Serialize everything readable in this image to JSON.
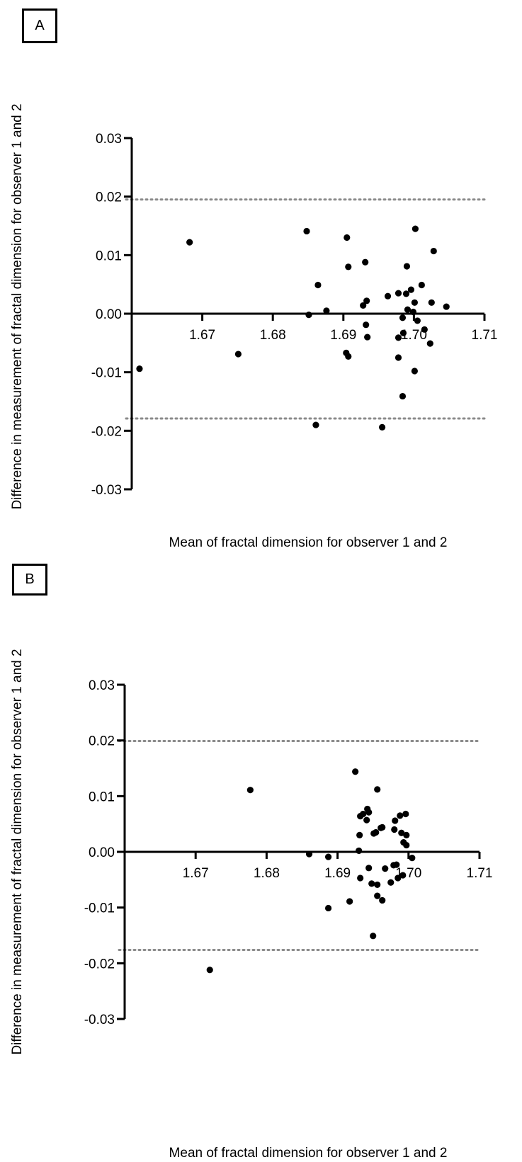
{
  "chart_data": [
    {
      "type": "scatter",
      "panel_label": "A",
      "xlabel": "Mean of fractal dimension for observer 1 and 2",
      "ylabel": "Difference in measurement of fractal dimension for observer 1 and 2",
      "xlim": [
        1.66,
        1.71
      ],
      "ylim": [
        -0.03,
        0.03
      ],
      "x_ticks": [
        "1.67",
        "1.68",
        "1.69",
        "1.70",
        "1.71"
      ],
      "y_ticks": [
        "0.03",
        "0.02",
        "0.01",
        "0.00",
        "-0.01",
        "-0.02",
        "-0.03"
      ],
      "limits_of_agreement": [
        0.0195,
        -0.0179
      ],
      "grid": false,
      "points": [
        [
          1.6682,
          0.0122
        ],
        [
          1.6611,
          -0.0094
        ],
        [
          1.6751,
          -0.0069
        ],
        [
          1.6848,
          0.0141
        ],
        [
          1.6851,
          -0.0002
        ],
        [
          1.6861,
          -0.019
        ],
        [
          1.6864,
          0.0049
        ],
        [
          1.6876,
          0.0005
        ],
        [
          1.6905,
          0.013
        ],
        [
          1.6907,
          0.008
        ],
        [
          1.6904,
          -0.0067
        ],
        [
          1.6907,
          -0.0073
        ],
        [
          1.6931,
          0.0088
        ],
        [
          1.6928,
          0.0014
        ],
        [
          1.6933,
          0.0022
        ],
        [
          1.6932,
          -0.0019
        ],
        [
          1.6934,
          -0.004
        ],
        [
          1.6955,
          -0.0194
        ],
        [
          1.6963,
          0.003
        ],
        [
          1.6978,
          0.0035
        ],
        [
          1.6978,
          -0.0041
        ],
        [
          1.6978,
          -0.0075
        ],
        [
          1.6985,
          -0.0033
        ],
        [
          1.6984,
          -0.0141
        ],
        [
          1.6984,
          -0.0007
        ],
        [
          1.6989,
          0.0034
        ],
        [
          1.699,
          0.0081
        ],
        [
          1.6991,
          0.0007
        ],
        [
          1.6996,
          0.0041
        ],
        [
          1.6999,
          0.0003
        ],
        [
          1.7001,
          0.0019
        ],
        [
          1.7001,
          -0.0098
        ],
        [
          1.7002,
          0.0145
        ],
        [
          1.7005,
          -0.0012
        ],
        [
          1.7011,
          0.0049
        ],
        [
          1.7015,
          -0.0027
        ],
        [
          1.7023,
          -0.0051
        ],
        [
          1.7025,
          0.0019
        ],
        [
          1.7028,
          0.0107
        ],
        [
          1.7046,
          0.0012
        ]
      ]
    },
    {
      "type": "scatter",
      "panel_label": "B",
      "xlabel": "Mean of fractal dimension for observer 1 and 2",
      "ylabel": "Difference in measurement of fractal dimension for observer 1 and 2",
      "xlim": [
        1.66,
        1.71
      ],
      "ylim": [
        -0.03,
        0.03
      ],
      "x_ticks": [
        "1.67",
        "1.68",
        "1.69",
        "1.70",
        "1.71"
      ],
      "y_ticks": [
        "0.03",
        "0.02",
        "0.01",
        "0.00",
        "-0.01",
        "-0.02",
        "-0.03"
      ],
      "limits_of_agreement": [
        0.0199,
        -0.0176
      ],
      "grid": false,
      "points": [
        [
          1.672,
          -0.0212
        ],
        [
          1.6777,
          0.0111
        ],
        [
          1.686,
          -0.0004
        ],
        [
          1.6887,
          -0.0009
        ],
        [
          1.6887,
          -0.0101
        ],
        [
          1.6917,
          -0.0089
        ],
        [
          1.6925,
          0.0144
        ],
        [
          1.693,
          0.0002
        ],
        [
          1.6932,
          0.0064
        ],
        [
          1.6931,
          0.003
        ],
        [
          1.6932,
          -0.0047
        ],
        [
          1.6936,
          0.0068
        ],
        [
          1.6941,
          0.0057
        ],
        [
          1.6942,
          0.0077
        ],
        [
          1.6944,
          0.0071
        ],
        [
          1.6944,
          -0.0029
        ],
        [
          1.6948,
          -0.0057
        ],
        [
          1.695,
          -0.0151
        ],
        [
          1.6951,
          0.0033
        ],
        [
          1.6954,
          0.0035
        ],
        [
          1.6956,
          0.0112
        ],
        [
          1.6956,
          -0.0059
        ],
        [
          1.6956,
          -0.0079
        ],
        [
          1.6961,
          0.0043
        ],
        [
          1.6963,
          0.0044
        ],
        [
          1.6963,
          -0.0087
        ],
        [
          1.6967,
          -0.003
        ],
        [
          1.6975,
          -0.0055
        ],
        [
          1.6979,
          -0.0024
        ],
        [
          1.698,
          0.004
        ],
        [
          1.6981,
          0.0056
        ],
        [
          1.6983,
          -0.0023
        ],
        [
          1.6985,
          -0.0047
        ],
        [
          1.6988,
          0.0065
        ],
        [
          1.699,
          0.0034
        ],
        [
          1.6992,
          -0.0042
        ],
        [
          1.6993,
          0.0017
        ],
        [
          1.6996,
          0.0068
        ],
        [
          1.6997,
          0.003
        ],
        [
          1.6997,
          0.0012
        ],
        [
          1.7005,
          -0.0011
        ]
      ]
    }
  ]
}
